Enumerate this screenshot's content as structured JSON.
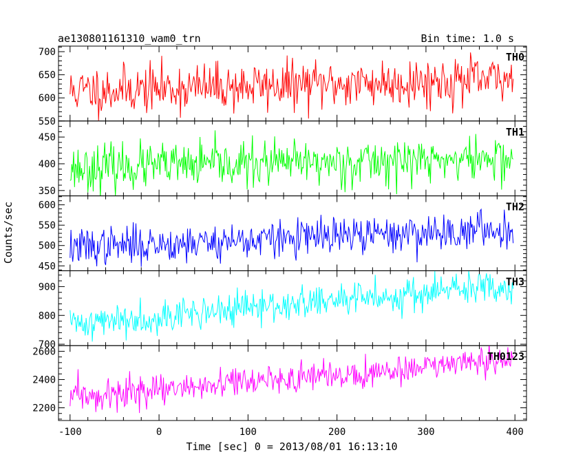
{
  "chart_data": {
    "type": "line",
    "title_left": "ae130801161310_wam0_trn",
    "title_right": "Bin time: 1.0 s",
    "xlabel": "Time [sec] 0 = 2013/08/01 16:13:10",
    "ylabel": "Counts/sec",
    "xlim": [
      -113,
      413
    ],
    "x_ticks": [
      "-100",
      "0",
      "100",
      "200",
      "300",
      "400"
    ],
    "x_tick_values": [
      -100,
      0,
      100,
      200,
      300,
      400
    ],
    "x_start": -100,
    "x_end": 398,
    "x_step": 1,
    "panels": [
      {
        "name": "TH0",
        "color": "#ff0000",
        "ylim": [
          550,
          712
        ],
        "y_ticks": [
          "550",
          "600",
          "650",
          "700"
        ],
        "y_tick_values": [
          550,
          600,
          650,
          700
        ],
        "trend_start": 615,
        "trend_end": 640,
        "noise": 26,
        "seed": 11
      },
      {
        "name": "TH1",
        "color": "#00ff00",
        "ylim": [
          340,
          480
        ],
        "y_ticks": [
          "350",
          "400",
          "450"
        ],
        "y_tick_values": [
          350,
          400,
          450
        ],
        "trend_start": 392,
        "trend_end": 410,
        "noise": 21,
        "seed": 23
      },
      {
        "name": "TH2",
        "color": "#0000ff",
        "ylim": [
          438,
          622
        ],
        "y_ticks": [
          "450",
          "500",
          "550",
          "600"
        ],
        "y_tick_values": [
          450,
          500,
          550,
          600
        ],
        "trend_start": 495,
        "trend_end": 540,
        "noise": 23,
        "seed": 37
      },
      {
        "name": "TH3",
        "color": "#00ffff",
        "ylim": [
          695,
          955
        ],
        "y_ticks": [
          "700",
          "800",
          "900"
        ],
        "y_tick_values": [
          700,
          800,
          900
        ],
        "trend_start": 770,
        "trend_end": 905,
        "noise": 29,
        "seed": 41
      },
      {
        "name": "TH0123",
        "color": "#ff00ff",
        "ylim": [
          2110,
          2640
        ],
        "y_ticks": [
          "2200",
          "2400",
          "2600"
        ],
        "y_tick_values": [
          2200,
          2400,
          2600
        ],
        "trend_start": 2270,
        "trend_end": 2540,
        "noise": 52,
        "seed": 59
      }
    ]
  }
}
